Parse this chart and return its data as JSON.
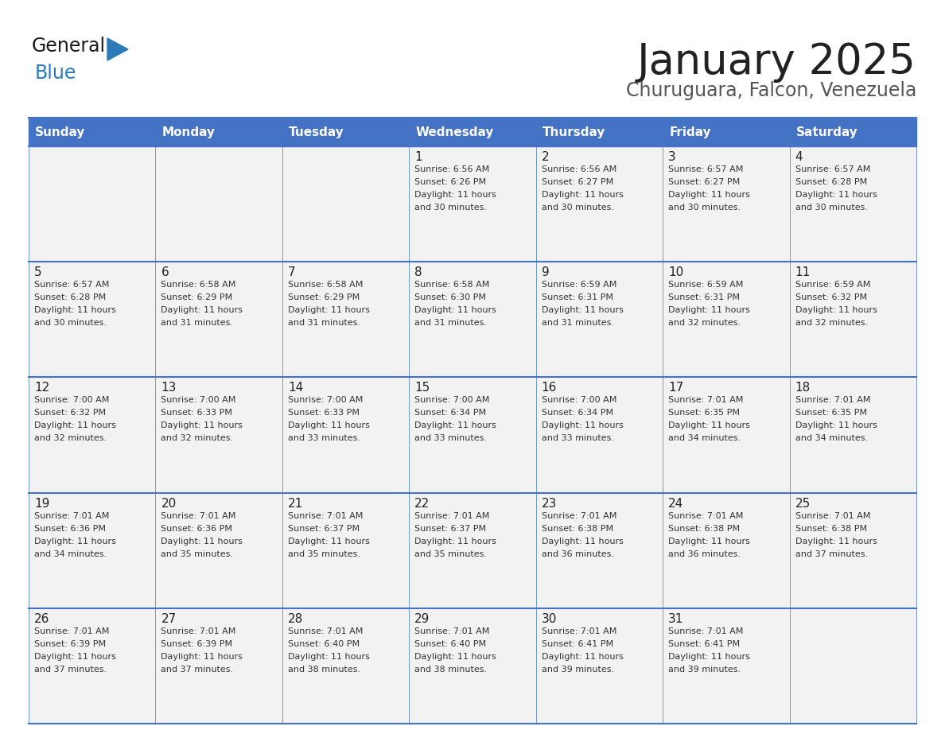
{
  "title": "January 2025",
  "subtitle": "Churuguara, Falcon, Venezuela",
  "header_bg": "#4472C4",
  "header_text_color": "#FFFFFF",
  "cell_bg": "#F2F2F2",
  "day_names": [
    "Sunday",
    "Monday",
    "Tuesday",
    "Wednesday",
    "Thursday",
    "Friday",
    "Saturday"
  ],
  "grid_line_color": "#4472C4",
  "calendar": [
    [
      null,
      null,
      null,
      {
        "day": 1,
        "sunrise": "6:56 AM",
        "sunset": "6:26 PM",
        "daylight": "11 hours",
        "daylight2": "and 30 minutes."
      },
      {
        "day": 2,
        "sunrise": "6:56 AM",
        "sunset": "6:27 PM",
        "daylight": "11 hours",
        "daylight2": "and 30 minutes."
      },
      {
        "day": 3,
        "sunrise": "6:57 AM",
        "sunset": "6:27 PM",
        "daylight": "11 hours",
        "daylight2": "and 30 minutes."
      },
      {
        "day": 4,
        "sunrise": "6:57 AM",
        "sunset": "6:28 PM",
        "daylight": "11 hours",
        "daylight2": "and 30 minutes."
      }
    ],
    [
      {
        "day": 5,
        "sunrise": "6:57 AM",
        "sunset": "6:28 PM",
        "daylight": "11 hours",
        "daylight2": "and 30 minutes."
      },
      {
        "day": 6,
        "sunrise": "6:58 AM",
        "sunset": "6:29 PM",
        "daylight": "11 hours",
        "daylight2": "and 31 minutes."
      },
      {
        "day": 7,
        "sunrise": "6:58 AM",
        "sunset": "6:29 PM",
        "daylight": "11 hours",
        "daylight2": "and 31 minutes."
      },
      {
        "day": 8,
        "sunrise": "6:58 AM",
        "sunset": "6:30 PM",
        "daylight": "11 hours",
        "daylight2": "and 31 minutes."
      },
      {
        "day": 9,
        "sunrise": "6:59 AM",
        "sunset": "6:31 PM",
        "daylight": "11 hours",
        "daylight2": "and 31 minutes."
      },
      {
        "day": 10,
        "sunrise": "6:59 AM",
        "sunset": "6:31 PM",
        "daylight": "11 hours",
        "daylight2": "and 32 minutes."
      },
      {
        "day": 11,
        "sunrise": "6:59 AM",
        "sunset": "6:32 PM",
        "daylight": "11 hours",
        "daylight2": "and 32 minutes."
      }
    ],
    [
      {
        "day": 12,
        "sunrise": "7:00 AM",
        "sunset": "6:32 PM",
        "daylight": "11 hours",
        "daylight2": "and 32 minutes."
      },
      {
        "day": 13,
        "sunrise": "7:00 AM",
        "sunset": "6:33 PM",
        "daylight": "11 hours",
        "daylight2": "and 32 minutes."
      },
      {
        "day": 14,
        "sunrise": "7:00 AM",
        "sunset": "6:33 PM",
        "daylight": "11 hours",
        "daylight2": "and 33 minutes."
      },
      {
        "day": 15,
        "sunrise": "7:00 AM",
        "sunset": "6:34 PM",
        "daylight": "11 hours",
        "daylight2": "and 33 minutes."
      },
      {
        "day": 16,
        "sunrise": "7:00 AM",
        "sunset": "6:34 PM",
        "daylight": "11 hours",
        "daylight2": "and 33 minutes."
      },
      {
        "day": 17,
        "sunrise": "7:01 AM",
        "sunset": "6:35 PM",
        "daylight": "11 hours",
        "daylight2": "and 34 minutes."
      },
      {
        "day": 18,
        "sunrise": "7:01 AM",
        "sunset": "6:35 PM",
        "daylight": "11 hours",
        "daylight2": "and 34 minutes."
      }
    ],
    [
      {
        "day": 19,
        "sunrise": "7:01 AM",
        "sunset": "6:36 PM",
        "daylight": "11 hours",
        "daylight2": "and 34 minutes."
      },
      {
        "day": 20,
        "sunrise": "7:01 AM",
        "sunset": "6:36 PM",
        "daylight": "11 hours",
        "daylight2": "and 35 minutes."
      },
      {
        "day": 21,
        "sunrise": "7:01 AM",
        "sunset": "6:37 PM",
        "daylight": "11 hours",
        "daylight2": "and 35 minutes."
      },
      {
        "day": 22,
        "sunrise": "7:01 AM",
        "sunset": "6:37 PM",
        "daylight": "11 hours",
        "daylight2": "and 35 minutes."
      },
      {
        "day": 23,
        "sunrise": "7:01 AM",
        "sunset": "6:38 PM",
        "daylight": "11 hours",
        "daylight2": "and 36 minutes."
      },
      {
        "day": 24,
        "sunrise": "7:01 AM",
        "sunset": "6:38 PM",
        "daylight": "11 hours",
        "daylight2": "and 36 minutes."
      },
      {
        "day": 25,
        "sunrise": "7:01 AM",
        "sunset": "6:38 PM",
        "daylight": "11 hours",
        "daylight2": "and 37 minutes."
      }
    ],
    [
      {
        "day": 26,
        "sunrise": "7:01 AM",
        "sunset": "6:39 PM",
        "daylight": "11 hours",
        "daylight2": "and 37 minutes."
      },
      {
        "day": 27,
        "sunrise": "7:01 AM",
        "sunset": "6:39 PM",
        "daylight": "11 hours",
        "daylight2": "and 37 minutes."
      },
      {
        "day": 28,
        "sunrise": "7:01 AM",
        "sunset": "6:40 PM",
        "daylight": "11 hours",
        "daylight2": "and 38 minutes."
      },
      {
        "day": 29,
        "sunrise": "7:01 AM",
        "sunset": "6:40 PM",
        "daylight": "11 hours",
        "daylight2": "and 38 minutes."
      },
      {
        "day": 30,
        "sunrise": "7:01 AM",
        "sunset": "6:41 PM",
        "daylight": "11 hours",
        "daylight2": "and 39 minutes."
      },
      {
        "day": 31,
        "sunrise": "7:01 AM",
        "sunset": "6:41 PM",
        "daylight": "11 hours",
        "daylight2": "and 39 minutes."
      },
      null
    ]
  ],
  "logo_general_color": "#1a1a1a",
  "logo_blue_color": "#2B7BB9"
}
